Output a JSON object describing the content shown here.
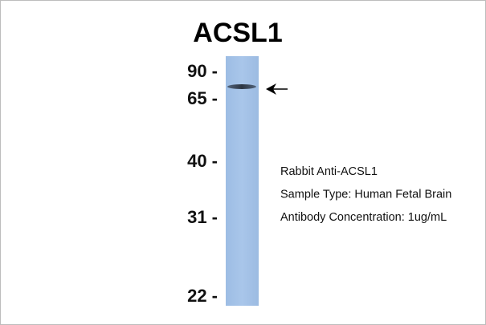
{
  "title": "ACSL1",
  "markers": [
    "90 -",
    "65 -",
    "40 -",
    "31 -",
    "22 -"
  ],
  "info": [
    "Rabbit Anti-ACSL1",
    "Sample Type: Human Fetal Brain",
    "Antibody Concentration: 1ug/mL"
  ]
}
